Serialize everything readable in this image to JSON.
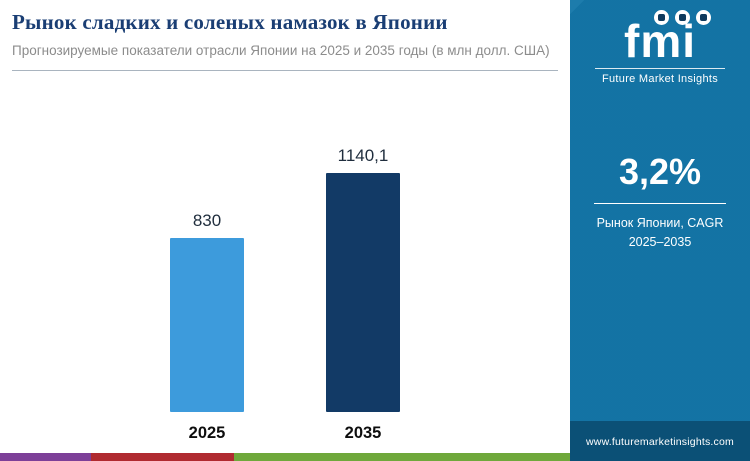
{
  "header": {
    "title": "Рынок сладких и соленых намазок в Японии",
    "subtitle": "Прогнозируемые показатели отрасли Японии на 2025 и 2035 годы (в млн долл. США)"
  },
  "chart_data": {
    "type": "bar",
    "categories": [
      "2025",
      "2035"
    ],
    "values": [
      830,
      1140.1
    ],
    "value_labels": [
      "830",
      "1140,1"
    ],
    "bar_colors": [
      "#3D9BDC",
      "#123A66"
    ],
    "title": "Рынок сладких и соленых намазок в Японии",
    "xlabel": "",
    "ylabel": "млн долл. США",
    "ylim": [
      0,
      1200
    ],
    "grid": false,
    "legend": "none"
  },
  "sidebar": {
    "logo_text": "fmi",
    "logo_caption": "Future Market Insights",
    "stat_value": "3,2%",
    "stat_caption": "Рынок Японии, CAGR 2025–2035",
    "footer_url": "www.futuremarketinsights.com",
    "background_color": "#1477A9",
    "footer_color": "#0B5076"
  },
  "footer": {
    "stripes": [
      {
        "color": "#7D3F98",
        "width_pct": 16
      },
      {
        "color": "#B02A30",
        "width_pct": 25
      },
      {
        "color": "#6FA83B",
        "width_pct": 59
      }
    ]
  }
}
